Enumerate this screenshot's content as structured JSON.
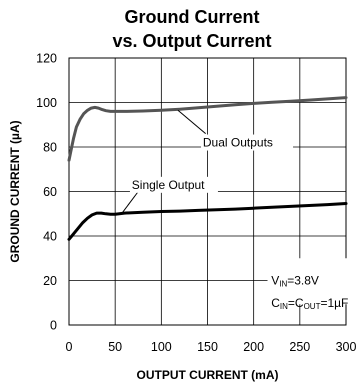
{
  "chart_data": {
    "type": "line",
    "title_line1": "Ground Current",
    "title_line2": "vs. Output Current",
    "xlabel": "OUTPUT CURRENT (mA)",
    "ylabel": "GROUND CURRENT (µA)",
    "xlim": [
      0,
      300
    ],
    "ylim": [
      0,
      120
    ],
    "xticks": [
      0,
      50,
      100,
      150,
      200,
      250,
      300
    ],
    "yticks": [
      0,
      20,
      40,
      60,
      80,
      100,
      120
    ],
    "grid": true,
    "series": [
      {
        "name": "Dual Outputs",
        "color": "#555555",
        "x": [
          0,
          2,
          5,
          8,
          12,
          16,
          20,
          24,
          28,
          32,
          36,
          40,
          45,
          50,
          60,
          80,
          100,
          120,
          140,
          160,
          180,
          200,
          220,
          240,
          260,
          280,
          300
        ],
        "y": [
          74,
          78,
          84,
          89,
          92.5,
          95,
          96.5,
          97.5,
          97.8,
          97.5,
          96.8,
          96.3,
          96,
          96,
          96,
          96.2,
          96.5,
          97,
          97.6,
          98.3,
          99,
          99.6,
          100.1,
          100.6,
          101.1,
          101.6,
          102.2
        ]
      },
      {
        "name": "Single Output",
        "color": "#000000",
        "x": [
          0,
          3,
          6,
          10,
          15,
          20,
          25,
          30,
          35,
          40,
          45,
          50,
          60,
          80,
          100,
          120,
          140,
          160,
          180,
          200,
          220,
          240,
          260,
          280,
          300
        ],
        "y": [
          38.5,
          40,
          41.5,
          43.5,
          46,
          48,
          49.5,
          50.3,
          50.3,
          50,
          49.8,
          49.8,
          50.3,
          50.7,
          51,
          51.2,
          51.5,
          51.8,
          52.1,
          52.5,
          52.9,
          53.3,
          53.7,
          54.1,
          54.6
        ]
      }
    ],
    "annotations": {
      "dual_label": "Dual Outputs",
      "single_label": "Single Output",
      "vin_main": "V",
      "vin_sub": "IN",
      "vin_rest": "=3.8V",
      "cin_main": "C",
      "cin_sub": "IN",
      "cin_eq": "=C",
      "cout_sub": "OUT",
      "cin_rest": "=1µF"
    }
  }
}
